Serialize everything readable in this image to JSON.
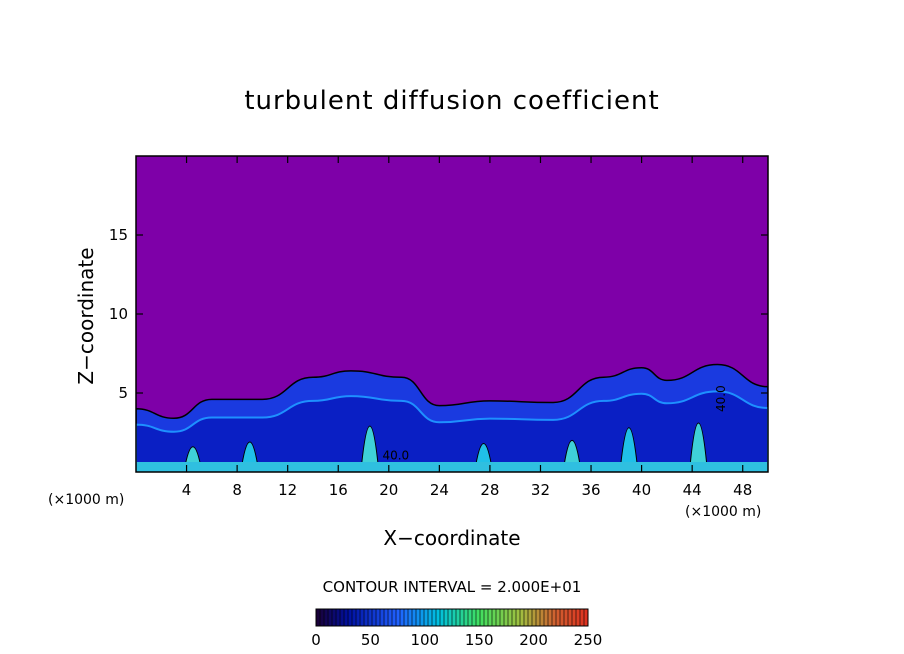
{
  "chart_data": {
    "type": "heatmap",
    "title": "turbulent diffusion coefficient",
    "xlabel": "X−coordinate",
    "ylabel": "Z−coordinate",
    "x_unit_left": "(×1000 m)",
    "x_unit_right": "(×1000 m)",
    "xlim": [
      0,
      50
    ],
    "ylim": [
      0,
      20
    ],
    "x_ticks": [
      4,
      8,
      12,
      16,
      20,
      24,
      28,
      32,
      36,
      40,
      44,
      48
    ],
    "y_ticks": [
      5,
      10,
      15
    ],
    "background_color": "#7e00a8",
    "contour_interval_text": "CONTOUR INTERVAL = 2.000E+01",
    "contour_labels": [
      "40.0",
      "40.0"
    ],
    "colorbar": {
      "ticks": [
        0,
        50,
        100,
        150,
        200,
        250
      ],
      "range": [
        0,
        250
      ]
    },
    "turbulent_layer_top": [
      [
        0,
        4.0
      ],
      [
        3,
        3.4
      ],
      [
        6,
        4.6
      ],
      [
        10,
        4.6
      ],
      [
        14,
        6.0
      ],
      [
        17,
        6.4
      ],
      [
        21,
        6.0
      ],
      [
        24,
        4.2
      ],
      [
        28,
        4.5
      ],
      [
        33,
        4.4
      ],
      [
        37,
        6.0
      ],
      [
        40,
        6.6
      ],
      [
        42,
        5.8
      ],
      [
        46,
        6.8
      ],
      [
        50,
        5.4
      ]
    ]
  }
}
